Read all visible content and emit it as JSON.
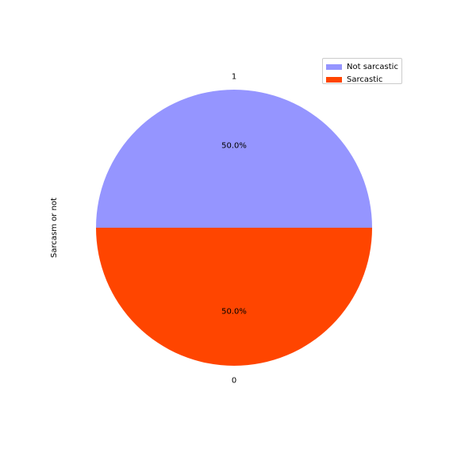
{
  "chart_data": {
    "type": "pie",
    "ylabel": "Sarcasm or not",
    "slices": [
      {
        "label": "1",
        "value": 50.0,
        "percent_label": "50.0%",
        "color": "#9595ff"
      },
      {
        "label": "0",
        "value": 50.0,
        "percent_label": "50.0%",
        "color": "#ff4500"
      }
    ],
    "legend": {
      "placement": "top-right",
      "entries": [
        {
          "name": "Not sarcastic",
          "color": "#9595ff"
        },
        {
          "name": "Sarcastic",
          "color": "#ff4500"
        }
      ]
    }
  }
}
